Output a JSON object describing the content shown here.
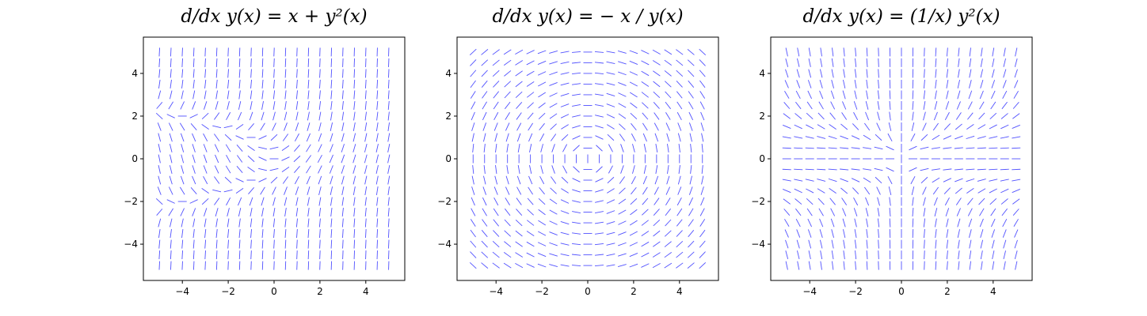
{
  "chart_data": [
    {
      "type": "direction_field",
      "title": "d/dx y(x) = x + y²(x)",
      "equation": "x + y^2",
      "x": {
        "min": -5,
        "max": 5,
        "count": 21
      },
      "y": {
        "min": -5,
        "max": 5,
        "count": 21
      },
      "xlim": [
        -5.7,
        5.7
      ],
      "ylim": [
        -5.7,
        5.7
      ],
      "xticks": [
        -4,
        -2,
        0,
        2,
        4
      ],
      "yticks": [
        -4,
        -2,
        0,
        2,
        4
      ],
      "xtick_labels": [
        "−4",
        "−2",
        "0",
        "2",
        "4"
      ],
      "ytick_labels": [
        "−4",
        "−2",
        "0",
        "2",
        "4"
      ],
      "grid": false
    },
    {
      "type": "direction_field",
      "title": "d/dx y(x) = − x / y(x)",
      "equation": "-x / y",
      "x": {
        "min": -5,
        "max": 5,
        "count": 21
      },
      "y": {
        "min": -5,
        "max": 5,
        "count": 21
      },
      "xlim": [
        -5.7,
        5.7
      ],
      "ylim": [
        -5.7,
        5.7
      ],
      "xticks": [
        -4,
        -2,
        0,
        2,
        4
      ],
      "yticks": [
        -4,
        -2,
        0,
        2,
        4
      ],
      "xtick_labels": [
        "−4",
        "−2",
        "0",
        "2",
        "4"
      ],
      "ytick_labels": [
        "−4",
        "−2",
        "0",
        "2",
        "4"
      ],
      "grid": false
    },
    {
      "type": "direction_field",
      "title": "d/dx y(x) = (1/x) y²(x)",
      "equation": "y^2 / x",
      "x": {
        "min": -5,
        "max": 5,
        "count": 21
      },
      "y": {
        "min": -5,
        "max": 5,
        "count": 21
      },
      "xlim": [
        -5.7,
        5.7
      ],
      "ylim": [
        -5.7,
        5.7
      ],
      "xticks": [
        -4,
        -2,
        0,
        2,
        4
      ],
      "yticks": [
        -4,
        -2,
        0,
        2,
        4
      ],
      "xtick_labels": [
        "−4",
        "−2",
        "0",
        "2",
        "4"
      ],
      "ytick_labels": [
        "−4",
        "−2",
        "0",
        "2",
        "4"
      ],
      "grid": false
    }
  ],
  "style": {
    "segment_color": "#3333ff",
    "axis_color": "#000000"
  }
}
